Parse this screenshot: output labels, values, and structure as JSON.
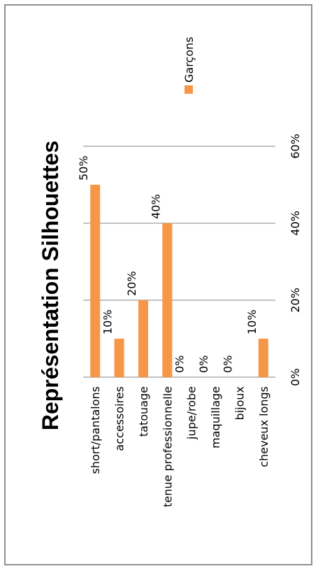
{
  "chart_data": {
    "type": "bar",
    "orientation": "horizontal",
    "title": "Représentation Silhouettes",
    "categories": [
      "short/pantalons",
      "accessoires",
      "tatouage",
      "tenue professionnelle",
      "jupe/robe",
      "maquillage",
      "bijoux",
      "cheveux longs"
    ],
    "series": [
      {
        "name": "Garçons",
        "values": [
          50,
          10,
          20,
          40,
          0,
          0,
          0,
          10
        ],
        "labels": [
          "50%",
          "10%",
          "20%",
          "40%",
          "0%",
          "0%",
          "0%",
          "10%"
        ],
        "color": "#F79646"
      }
    ],
    "x_ticks": [
      "0%",
      "20%",
      "40%",
      "60%"
    ],
    "xlim": [
      0,
      60
    ],
    "grid": true,
    "legend_position": "top-right"
  }
}
